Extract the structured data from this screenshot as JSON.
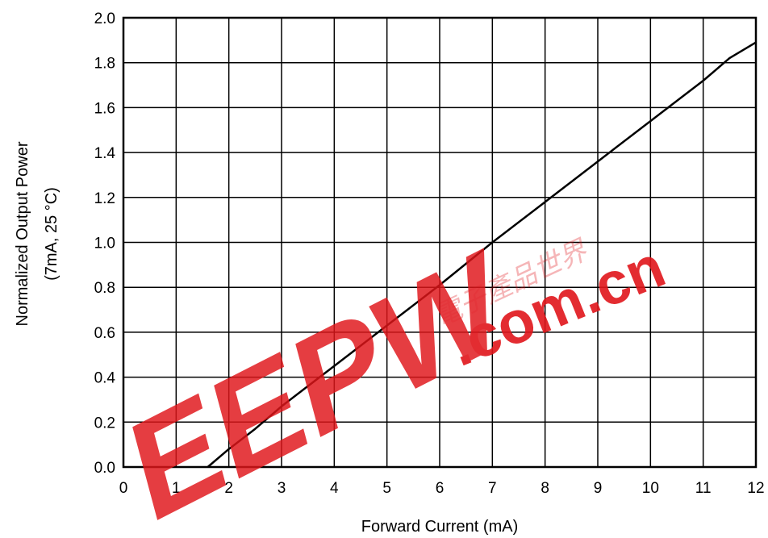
{
  "chart_data": {
    "type": "line",
    "title": "",
    "xlabel": "Forward Current (mA)",
    "ylabel_lines": [
      "Normalized Output Power",
      "(7mA, 25 °C)"
    ],
    "xlim": [
      0,
      12
    ],
    "ylim": [
      0,
      2.0
    ],
    "x_ticks": [
      "0",
      "1",
      "2",
      "3",
      "4",
      "5",
      "6",
      "7",
      "8",
      "9",
      "10",
      "11",
      "12"
    ],
    "y_ticks": [
      "0.0",
      "0.2",
      "0.4",
      "0.6",
      "0.8",
      "1.0",
      "1.2",
      "1.4",
      "1.6",
      "1.8",
      "2.0"
    ],
    "grid": true,
    "series": [
      {
        "color": "#000000",
        "x": [
          1.6,
          2.0,
          2.5,
          3.0,
          4.0,
          5.0,
          6.0,
          7.0,
          8.0,
          9.0,
          10.0,
          11.0,
          11.5,
          12.0
        ],
        "y": [
          0.0,
          0.08,
          0.17,
          0.27,
          0.45,
          0.63,
          0.81,
          1.0,
          1.18,
          1.36,
          1.54,
          1.72,
          1.82,
          1.89
        ]
      }
    ]
  },
  "watermark": {
    "logo_text": "EEPW",
    "domain_text": ".com.cn",
    "cn_text": "電子產品世界",
    "color": "#e0161b"
  }
}
